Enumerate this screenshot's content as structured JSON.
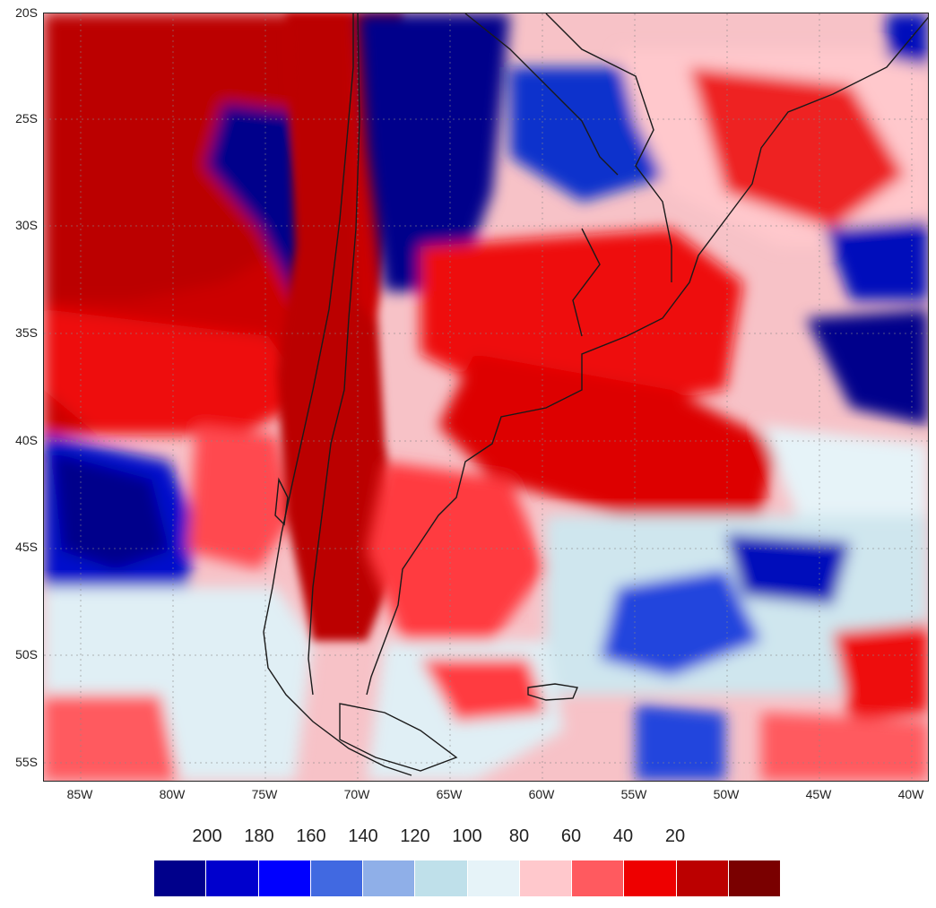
{
  "map": {
    "latitude_labels": [
      "20S",
      "25S",
      "30S",
      "35S",
      "40S",
      "45S",
      "50S",
      "55S"
    ],
    "longitude_labels": [
      "85W",
      "80W",
      "75W",
      "70W",
      "65W",
      "60W",
      "55W",
      "50W",
      "45W",
      "40W"
    ],
    "region": "South America / Patagonia and adjacent South Atlantic",
    "coastline_color": "#1a1a1a",
    "gridline_style": "dotted"
  },
  "legend": {
    "values": [
      "200",
      "180",
      "160",
      "140",
      "120",
      "100",
      "80",
      "60",
      "40",
      "20"
    ],
    "colors": [
      "#00008b",
      "#0000cd",
      "#0000ff",
      "#4169e1",
      "#8fafe8",
      "#bfe0ea",
      "#e6f3f8",
      "#ffc8cc",
      "#ff5a5f",
      "#ee0000",
      "#bb0000",
      "#7a0000"
    ]
  }
}
